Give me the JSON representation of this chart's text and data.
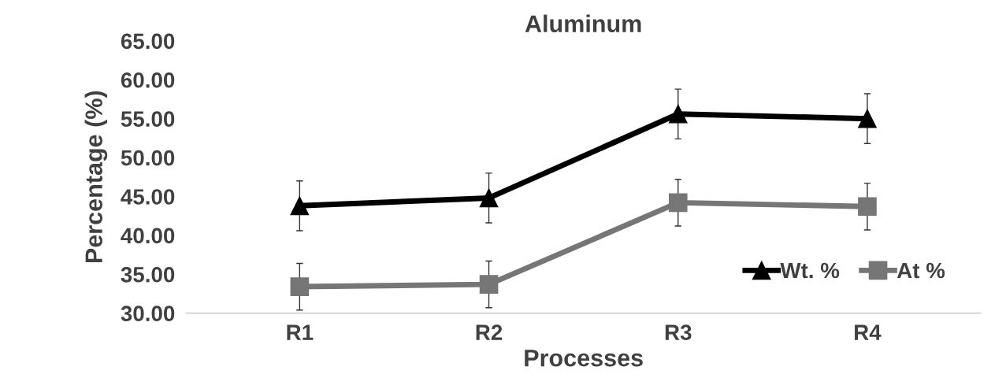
{
  "chart_data": {
    "type": "line",
    "title": "Aluminum",
    "xlabel": "Processes",
    "ylabel": "Percentage (%)",
    "categories": [
      "R1",
      "R2",
      "R3",
      "R4"
    ],
    "series": [
      {
        "name": "Wt. %",
        "color": "#000000",
        "marker": "triangle",
        "values": [
          43.8,
          44.8,
          55.6,
          55.0
        ],
        "errors": [
          3.2,
          3.2,
          3.2,
          3.2
        ]
      },
      {
        "name": "At %",
        "color": "#767676",
        "marker": "square",
        "values": [
          33.4,
          33.7,
          44.2,
          43.7
        ],
        "errors": [
          3,
          3,
          3,
          3
        ]
      }
    ],
    "ylim": [
      30,
      65
    ],
    "yticks": [
      {
        "value": 30,
        "label": "30.00"
      },
      {
        "value": 35,
        "label": "35.00"
      },
      {
        "value": 40,
        "label": "40.00"
      },
      {
        "value": 45,
        "label": "45.00"
      },
      {
        "value": 50,
        "label": "50.00"
      },
      {
        "value": 55,
        "label": "55.00"
      },
      {
        "value": 60,
        "label": "60.00"
      },
      {
        "value": 65,
        "label": "65.00"
      }
    ],
    "grid": false,
    "legend": "bottom right",
    "line_style": "solid"
  }
}
